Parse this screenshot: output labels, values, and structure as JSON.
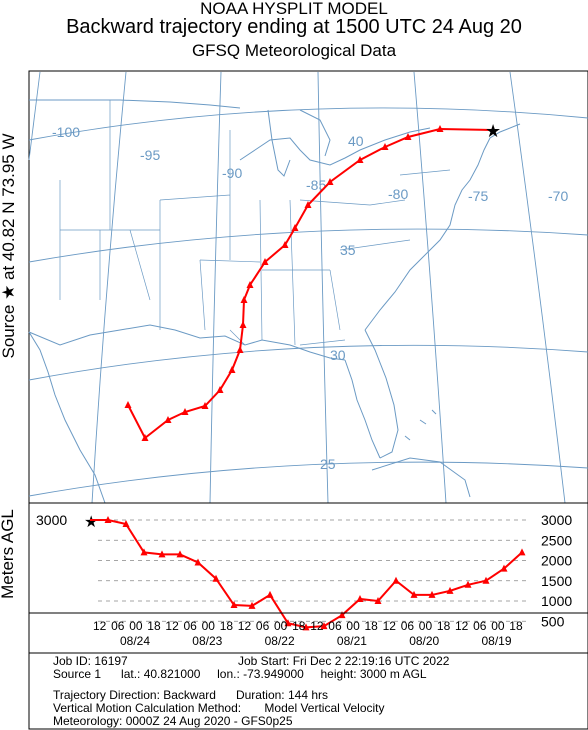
{
  "header": {
    "line1": "NOAA HYSPLIT MODEL",
    "line2": "Backward trajectory ending at 1500 UTC 24 Aug 20",
    "line3": "GFSQ Meteorological Data"
  },
  "side_label": "Source ★  at   40.82 N   73.95 W",
  "alt_label": "Meters AGL",
  "map": {
    "longitude_labels": [
      "-100",
      "-95",
      "-90",
      "-85",
      "-80",
      "-75",
      "-70"
    ],
    "latitude_labels": [
      "40",
      "35",
      "30",
      "25"
    ],
    "colors": {
      "trajectory": "#ff0000",
      "coast": "#6b9ac4",
      "grid": "#6b9ac4",
      "grid_label": "#6b9ac4"
    }
  },
  "chart_data": {
    "type": "line",
    "title": "",
    "xlabel": "",
    "ylabel": "Meters AGL",
    "y_ticks": [
      "3000",
      "2500",
      "2000",
      "1500",
      "1000",
      "500"
    ],
    "start_label": "3000",
    "x_hour_labels": [
      "12",
      "06",
      "00",
      "18",
      "12",
      "06",
      "00",
      "18",
      "12",
      "06",
      "00",
      "18",
      "12",
      "06",
      "00",
      "18",
      "12",
      "06",
      "00",
      "18",
      "12",
      "06",
      "00",
      "18"
    ],
    "x_date_labels": [
      "08/24",
      "08/23",
      "08/22",
      "08/21",
      "08/20",
      "08/19"
    ],
    "ylim": [
      0,
      3300
    ],
    "series": [
      {
        "hours_back": [
          0,
          6,
          12,
          18,
          24,
          30,
          36,
          42,
          48,
          54,
          60,
          66,
          72,
          78,
          84,
          90,
          96,
          102,
          108,
          114,
          120,
          126,
          132,
          138,
          144
        ],
        "height_m": [
          3000,
          3000,
          2900,
          2200,
          2150,
          2150,
          1950,
          1550,
          900,
          880,
          1150,
          450,
          350,
          380,
          650,
          1050,
          1000,
          1500,
          1150,
          1150,
          1250,
          1400,
          1500,
          1800,
          2200
        ]
      }
    ]
  },
  "footer": {
    "job_id": "Job ID: 16197",
    "job_start": "Job Start: Fri Dec  2 22:19:16 UTC 2022",
    "source": "Source 1      lat.: 40.821000     lon.: -73.949000     height: 3000 m AGL",
    "direction": "Trajectory Direction: Backward      Duration: 144 hrs",
    "vertical": "Vertical Motion Calculation Method:       Model Vertical Velocity",
    "meteorology": "Meteorology: 0000Z 24 Aug 2020 - GFS0p25"
  }
}
